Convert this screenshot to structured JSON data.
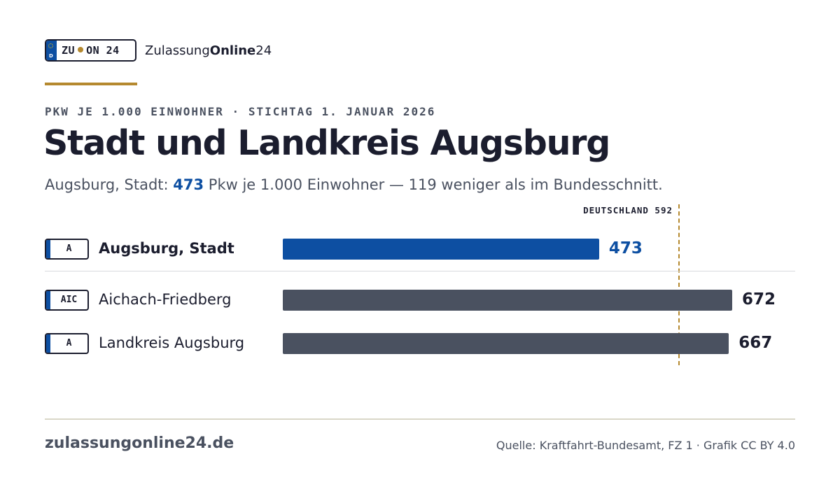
{
  "brand": {
    "plate_left": "ZU",
    "plate_right": "ON 24",
    "plate_country": "D",
    "name_regular": "Zulassung",
    "name_bold": "Online",
    "name_suffix": "24"
  },
  "header": {
    "eyebrow": "PKW JE 1.000 EINWOHNER · STICHTAG 1. JANUAR 2026",
    "title": "Stadt und Landkreis Augsburg",
    "subtitle_prefix": "Augsburg, Stadt: ",
    "subtitle_value": "473",
    "subtitle_suffix": " Pkw je 1.000 Einwohner — 119 weniger als im Bundesschnitt."
  },
  "chart_data": {
    "type": "bar",
    "orientation": "horizontal",
    "categories": [
      "Augsburg, Stadt",
      "Aichach-Friedberg",
      "Landkreis Augsburg"
    ],
    "plates": [
      "A",
      "AIC",
      "A"
    ],
    "values": [
      473,
      672,
      667
    ],
    "highlight_index": 0,
    "reference": {
      "label": "DEUTSCHLAND 592",
      "value": 592
    },
    "xlim": [
      0,
      672
    ],
    "colors": {
      "highlight": "#0d4fa2",
      "default": "#4a5160",
      "reference": "#b5892f",
      "text": "#1b1d2e"
    }
  },
  "footer": {
    "site": "zulassungonline24.de",
    "source": "Quelle: Kraftfahrt-Bundesamt, FZ 1 · Grafik CC BY 4.0"
  }
}
